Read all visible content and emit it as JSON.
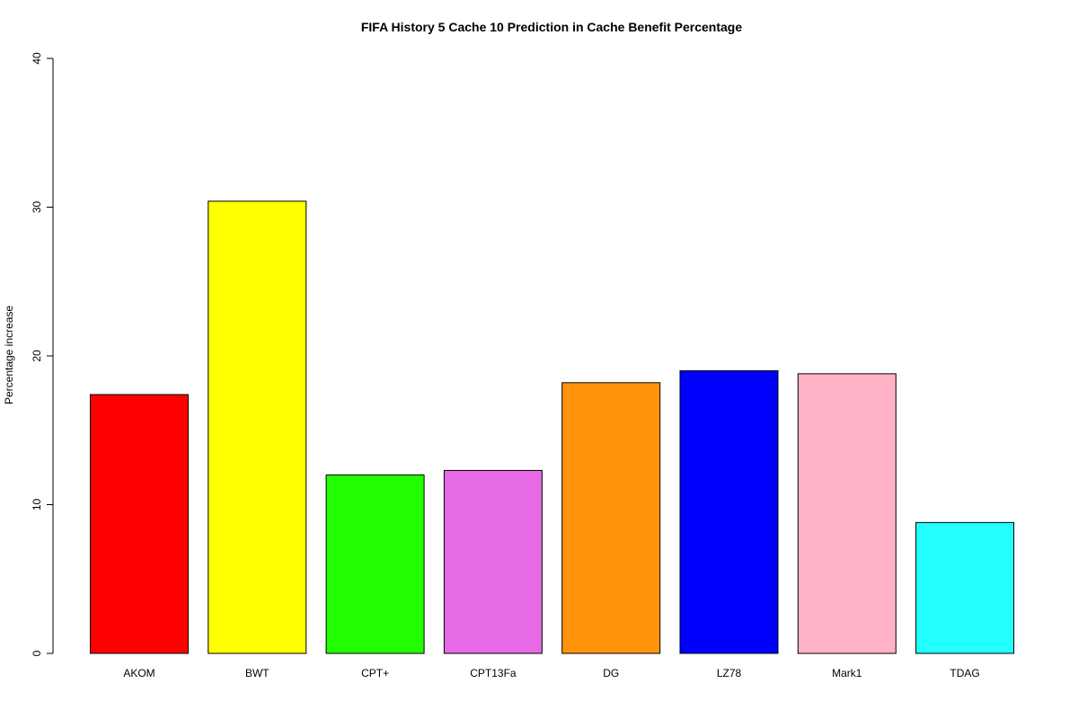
{
  "chart_data": {
    "type": "bar",
    "title": "FIFA  History  5  Cache  10 Prediction in Cache Benefit Percentage",
    "xlabel": "",
    "ylabel": "Percentage increase",
    "ylim": [
      0,
      40
    ],
    "yticks": [
      "0",
      "10",
      "20",
      "30",
      "40"
    ],
    "grid": false,
    "legend": "none",
    "categories": [
      "AKOM",
      "BWT",
      "CPT+",
      "CPT13Fa",
      "DG",
      "LZ78",
      "Mark1",
      "TDAG"
    ],
    "values": [
      17.4,
      30.4,
      12.0,
      12.3,
      18.2,
      19.0,
      18.8,
      8.8
    ],
    "colors": [
      "#ff0000",
      "#ffff00",
      "#22ff00",
      "#e66ae6",
      "#ff940b",
      "#0000ff",
      "#ffb2c6",
      "#22ffff"
    ]
  }
}
